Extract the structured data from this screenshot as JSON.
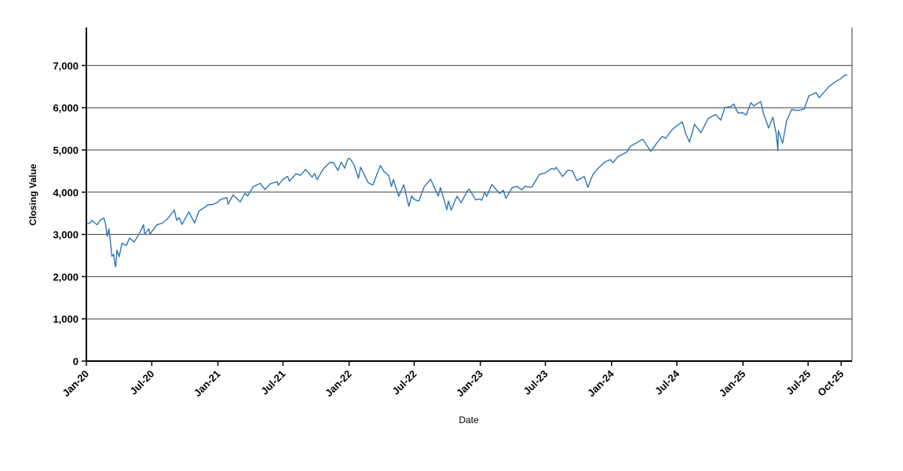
{
  "chart_data": {
    "type": "line",
    "xlabel": "Date",
    "ylabel": "Closing Value",
    "grid": "horizontal",
    "legend": "none",
    "line_color": "#2e75b6",
    "ylim": [
      0,
      7900
    ],
    "x_domain": [
      "2020-01-01",
      "2025-10-31"
    ],
    "x_ticks": [
      "Jan-20",
      "Jul-20",
      "Jan-21",
      "Jul-21",
      "Jan-22",
      "Jul-22",
      "Jan-23",
      "Jul-23",
      "Jan-24",
      "Jul-24",
      "Jan-25",
      "Jul-25",
      "Oct-25"
    ],
    "y_ticks": [
      {
        "label": "0",
        "value": 0
      },
      {
        "label": "1,000",
        "value": 1000
      },
      {
        "label": "2,000",
        "value": 2000
      },
      {
        "label": "3,000",
        "value": 3000
      },
      {
        "label": "4,000",
        "value": 4000
      },
      {
        "label": "5,000",
        "value": 5000
      },
      {
        "label": "6,000",
        "value": 6000
      },
      {
        "label": "7,000",
        "value": 7000
      }
    ],
    "series": [
      {
        "name": "Closing Value",
        "points": [
          [
            "2020-01-02",
            3258
          ],
          [
            "2020-01-10",
            3265
          ],
          [
            "2020-01-17",
            3330
          ],
          [
            "2020-01-31",
            3226
          ],
          [
            "2020-02-10",
            3352
          ],
          [
            "2020-02-19",
            3386
          ],
          [
            "2020-02-24",
            3226
          ],
          [
            "2020-02-28",
            2954
          ],
          [
            "2020-03-04",
            3130
          ],
          [
            "2020-03-09",
            2747
          ],
          [
            "2020-03-12",
            2481
          ],
          [
            "2020-03-17",
            2529
          ],
          [
            "2020-03-20",
            2305
          ],
          [
            "2020-03-23",
            2237
          ],
          [
            "2020-03-26",
            2630
          ],
          [
            "2020-04-01",
            2470
          ],
          [
            "2020-04-09",
            2790
          ],
          [
            "2020-04-21",
            2737
          ],
          [
            "2020-04-30",
            2912
          ],
          [
            "2020-05-13",
            2820
          ],
          [
            "2020-05-29",
            3044
          ],
          [
            "2020-06-08",
            3232
          ],
          [
            "2020-06-11",
            3002
          ],
          [
            "2020-06-23",
            3131
          ],
          [
            "2020-06-26",
            3009
          ],
          [
            "2020-07-15",
            3227
          ],
          [
            "2020-07-31",
            3271
          ],
          [
            "2020-08-14",
            3373
          ],
          [
            "2020-09-02",
            3581
          ],
          [
            "2020-09-08",
            3332
          ],
          [
            "2020-09-15",
            3401
          ],
          [
            "2020-09-23",
            3237
          ],
          [
            "2020-10-12",
            3534
          ],
          [
            "2020-10-28",
            3271
          ],
          [
            "2020-11-09",
            3550
          ],
          [
            "2020-11-24",
            3635
          ],
          [
            "2020-12-04",
            3699
          ],
          [
            "2020-12-18",
            3709
          ],
          [
            "2020-12-31",
            3756
          ],
          [
            "2021-01-08",
            3825
          ],
          [
            "2021-01-26",
            3870
          ],
          [
            "2021-01-29",
            3714
          ],
          [
            "2021-02-12",
            3935
          ],
          [
            "2021-02-25",
            3829
          ],
          [
            "2021-03-04",
            3768
          ],
          [
            "2021-03-17",
            3974
          ],
          [
            "2021-03-25",
            3910
          ],
          [
            "2021-04-09",
            4129
          ],
          [
            "2021-04-29",
            4211
          ],
          [
            "2021-05-12",
            4063
          ],
          [
            "2021-05-27",
            4201
          ],
          [
            "2021-06-15",
            4246
          ],
          [
            "2021-06-18",
            4166
          ],
          [
            "2021-06-30",
            4298
          ],
          [
            "2021-07-14",
            4374
          ],
          [
            "2021-07-19",
            4258
          ],
          [
            "2021-08-06",
            4437
          ],
          [
            "2021-08-18",
            4400
          ],
          [
            "2021-09-02",
            4537
          ],
          [
            "2021-09-20",
            4358
          ],
          [
            "2021-09-27",
            4443
          ],
          [
            "2021-10-04",
            4300
          ],
          [
            "2021-10-21",
            4550
          ],
          [
            "2021-11-08",
            4702
          ],
          [
            "2021-11-18",
            4705
          ],
          [
            "2021-12-01",
            4513
          ],
          [
            "2021-12-10",
            4712
          ],
          [
            "2021-12-20",
            4568
          ],
          [
            "2021-12-29",
            4793
          ],
          [
            "2022-01-03",
            4797
          ],
          [
            "2022-01-14",
            4663
          ],
          [
            "2022-01-27",
            4327
          ],
          [
            "2022-02-02",
            4589
          ],
          [
            "2022-02-23",
            4226
          ],
          [
            "2022-03-08",
            4171
          ],
          [
            "2022-03-29",
            4631
          ],
          [
            "2022-04-08",
            4488
          ],
          [
            "2022-04-21",
            4394
          ],
          [
            "2022-04-29",
            4132
          ],
          [
            "2022-05-04",
            4300
          ],
          [
            "2022-05-19",
            3901
          ],
          [
            "2022-06-02",
            4177
          ],
          [
            "2022-06-16",
            3667
          ],
          [
            "2022-06-24",
            3912
          ],
          [
            "2022-07-01",
            3825
          ],
          [
            "2022-07-14",
            3790
          ],
          [
            "2022-07-29",
            4130
          ],
          [
            "2022-08-16",
            4305
          ],
          [
            "2022-09-06",
            3908
          ],
          [
            "2022-09-12",
            4110
          ],
          [
            "2022-09-30",
            3586
          ],
          [
            "2022-10-04",
            3791
          ],
          [
            "2022-10-12",
            3577
          ],
          [
            "2022-10-28",
            3901
          ],
          [
            "2022-11-09",
            3749
          ],
          [
            "2022-11-25",
            4026
          ],
          [
            "2022-12-01",
            4077
          ],
          [
            "2022-12-19",
            3818
          ],
          [
            "2022-12-30",
            3840
          ],
          [
            "2023-01-05",
            3808
          ],
          [
            "2023-01-13",
            3999
          ],
          [
            "2023-01-19",
            3899
          ],
          [
            "2023-02-02",
            4180
          ],
          [
            "2023-02-24",
            3970
          ],
          [
            "2023-03-06",
            4049
          ],
          [
            "2023-03-13",
            3856
          ],
          [
            "2023-03-31",
            4109
          ],
          [
            "2023-04-14",
            4138
          ],
          [
            "2023-04-26",
            4056
          ],
          [
            "2023-05-05",
            4136
          ],
          [
            "2023-05-24",
            4115
          ],
          [
            "2023-06-15",
            4426
          ],
          [
            "2023-06-30",
            4450
          ],
          [
            "2023-07-19",
            4566
          ],
          [
            "2023-07-27",
            4537
          ],
          [
            "2023-07-31",
            4589
          ],
          [
            "2023-08-18",
            4370
          ],
          [
            "2023-09-01",
            4516
          ],
          [
            "2023-09-14",
            4505
          ],
          [
            "2023-09-27",
            4274
          ],
          [
            "2023-10-17",
            4373
          ],
          [
            "2023-10-27",
            4117
          ],
          [
            "2023-11-10",
            4415
          ],
          [
            "2023-11-24",
            4559
          ],
          [
            "2023-12-14",
            4720
          ],
          [
            "2023-12-29",
            4770
          ],
          [
            "2024-01-05",
            4697
          ],
          [
            "2024-01-19",
            4840
          ],
          [
            "2024-02-13",
            4953
          ],
          [
            "2024-02-23",
            5089
          ],
          [
            "2024-03-12",
            5175
          ],
          [
            "2024-03-28",
            5254
          ],
          [
            "2024-04-19",
            4967
          ],
          [
            "2024-05-03",
            5128
          ],
          [
            "2024-05-21",
            5321
          ],
          [
            "2024-05-31",
            5278
          ],
          [
            "2024-06-18",
            5487
          ],
          [
            "2024-07-16",
            5667
          ],
          [
            "2024-07-25",
            5399
          ],
          [
            "2024-08-05",
            5186
          ],
          [
            "2024-08-19",
            5608
          ],
          [
            "2024-09-06",
            5408
          ],
          [
            "2024-09-26",
            5745
          ],
          [
            "2024-10-17",
            5841
          ],
          [
            "2024-10-31",
            5705
          ],
          [
            "2024-11-11",
            6001
          ],
          [
            "2024-11-29",
            6032
          ],
          [
            "2024-12-06",
            6090
          ],
          [
            "2024-12-18",
            5872
          ],
          [
            "2024-12-31",
            5882
          ],
          [
            "2025-01-10",
            5827
          ],
          [
            "2025-01-23",
            6119
          ],
          [
            "2025-01-31",
            6041
          ],
          [
            "2025-02-19",
            6147
          ],
          [
            "2025-02-27",
            5861
          ],
          [
            "2025-03-13",
            5521
          ],
          [
            "2025-03-25",
            5777
          ],
          [
            "2025-04-03",
            5396
          ],
          [
            "2025-04-08",
            4983
          ],
          [
            "2025-04-09",
            5457
          ],
          [
            "2025-04-21",
            5158
          ],
          [
            "2025-05-02",
            5687
          ],
          [
            "2025-05-16",
            5958
          ],
          [
            "2025-06-02",
            5936
          ],
          [
            "2025-06-20",
            5968
          ],
          [
            "2025-07-03",
            6279
          ],
          [
            "2025-07-23",
            6359
          ],
          [
            "2025-08-01",
            6238
          ],
          [
            "2025-08-28",
            6502
          ],
          [
            "2025-09-15",
            6615
          ],
          [
            "2025-09-30",
            6688
          ],
          [
            "2025-10-08",
            6754
          ],
          [
            "2025-10-17",
            6780
          ]
        ]
      }
    ]
  }
}
